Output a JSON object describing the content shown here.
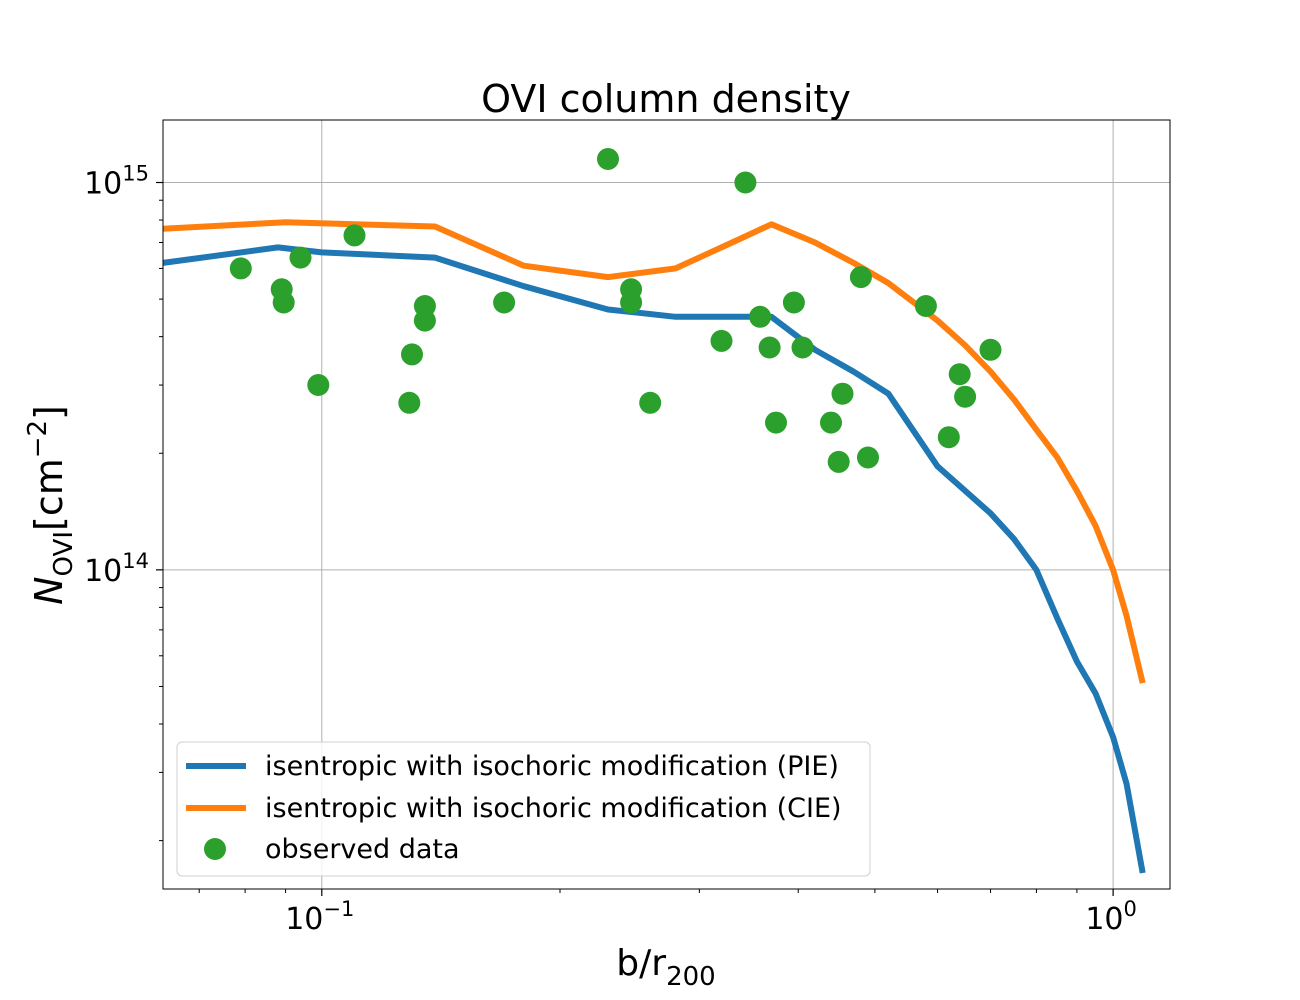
{
  "chart_data": {
    "type": "line",
    "title": "OVI column density",
    "xlabel": "b/r",
    "xlabel_sub": "200",
    "ylabel": "N",
    "ylabel_sub": "OVI",
    "ylabel_unit_open": "[cm",
    "ylabel_unit_exp": "−2",
    "ylabel_unit_close": "]",
    "xscale": "log",
    "yscale": "log",
    "xlim": [
      0.063,
      1.18
    ],
    "ylim": [
      15000000000000.0,
      1450000000000000.0
    ],
    "grid": true,
    "legend_position": "lower-left",
    "x_ticks": [
      {
        "value": 0.1,
        "base": "10",
        "exp": "−1"
      },
      {
        "value": 1.0,
        "base": "10",
        "exp": "0"
      }
    ],
    "y_ticks": [
      {
        "value": 100000000000000.0,
        "base": "10",
        "exp": "14"
      },
      {
        "value": 1000000000000000.0,
        "base": "10",
        "exp": "15"
      }
    ],
    "series": [
      {
        "name": "isentropic with isochoric modification (PIE)",
        "kind": "line",
        "color": "#1f77b4",
        "x": [
          0.063,
          0.088,
          0.1,
          0.139,
          0.18,
          0.23,
          0.28,
          0.325,
          0.37,
          0.42,
          0.47,
          0.52,
          0.6,
          0.65,
          0.7,
          0.75,
          0.8,
          0.85,
          0.9,
          0.95,
          1.0,
          1.04,
          1.09
        ],
        "y": [
          620000000000000.0,
          680000000000000.0,
          660000000000000.0,
          640000000000000.0,
          540000000000000.0,
          470000000000000.0,
          450000000000000.0,
          450000000000000.0,
          450000000000000.0,
          370000000000000.0,
          325000000000000.0,
          285000000000000.0,
          185000000000000.0,
          160000000000000.0,
          140000000000000.0,
          120000000000000.0,
          100000000000000.0,
          75000000000000.0,
          58000000000000.0,
          48000000000000.0,
          37000000000000.0,
          28000000000000.0,
          16500000000000.0
        ]
      },
      {
        "name": "isentropic with isochoric modification (CIE)",
        "kind": "line",
        "color": "#ff7f0e",
        "x": [
          0.063,
          0.09,
          0.11,
          0.139,
          0.18,
          0.23,
          0.28,
          0.33,
          0.37,
          0.42,
          0.47,
          0.52,
          0.6,
          0.65,
          0.7,
          0.75,
          0.8,
          0.85,
          0.9,
          0.95,
          1.0,
          1.04,
          1.09
        ],
        "y": [
          760000000000000.0,
          790000000000000.0,
          780000000000000.0,
          770000000000000.0,
          610000000000000.0,
          570000000000000.0,
          600000000000000.0,
          700000000000000.0,
          780000000000000.0,
          700000000000000.0,
          620000000000000.0,
          550000000000000.0,
          440000000000000.0,
          380000000000000.0,
          325000000000000.0,
          275000000000000.0,
          230000000000000.0,
          195000000000000.0,
          160000000000000.0,
          130000000000000.0,
          100000000000000.0,
          76000000000000.0,
          51000000000000.0
        ]
      },
      {
        "name": "observed data",
        "kind": "scatter",
        "color": "#2ca02c",
        "x": [
          0.079,
          0.089,
          0.0895,
          0.094,
          0.099,
          0.11,
          0.129,
          0.13,
          0.135,
          0.135,
          0.17,
          0.23,
          0.246,
          0.246,
          0.26,
          0.32,
          0.343,
          0.358,
          0.368,
          0.375,
          0.395,
          0.405,
          0.44,
          0.45,
          0.455,
          0.48,
          0.49,
          0.58,
          0.62,
          0.64,
          0.65,
          0.7
        ],
        "y": [
          600000000000000.0,
          530000000000000.0,
          490000000000000.0,
          640000000000000.0,
          300000000000000.0,
          730000000000000.0,
          270000000000000.0,
          360000000000000.0,
          440000000000000.0,
          480000000000000.0,
          490000000000000.0,
          1150000000000000.0,
          530000000000000.0,
          490000000000000.0,
          270000000000000.0,
          390000000000000.0,
          1000000000000000.0,
          450000000000000.0,
          375000000000000.0,
          240000000000000.0,
          490000000000000.0,
          375000000000000.0,
          240000000000000.0,
          190000000000000.0,
          285000000000000.0,
          570000000000000.0,
          195000000000000.0,
          480000000000000.0,
          220000000000000.0,
          320000000000000.0,
          280000000000000.0,
          370000000000000.0
        ]
      }
    ]
  }
}
